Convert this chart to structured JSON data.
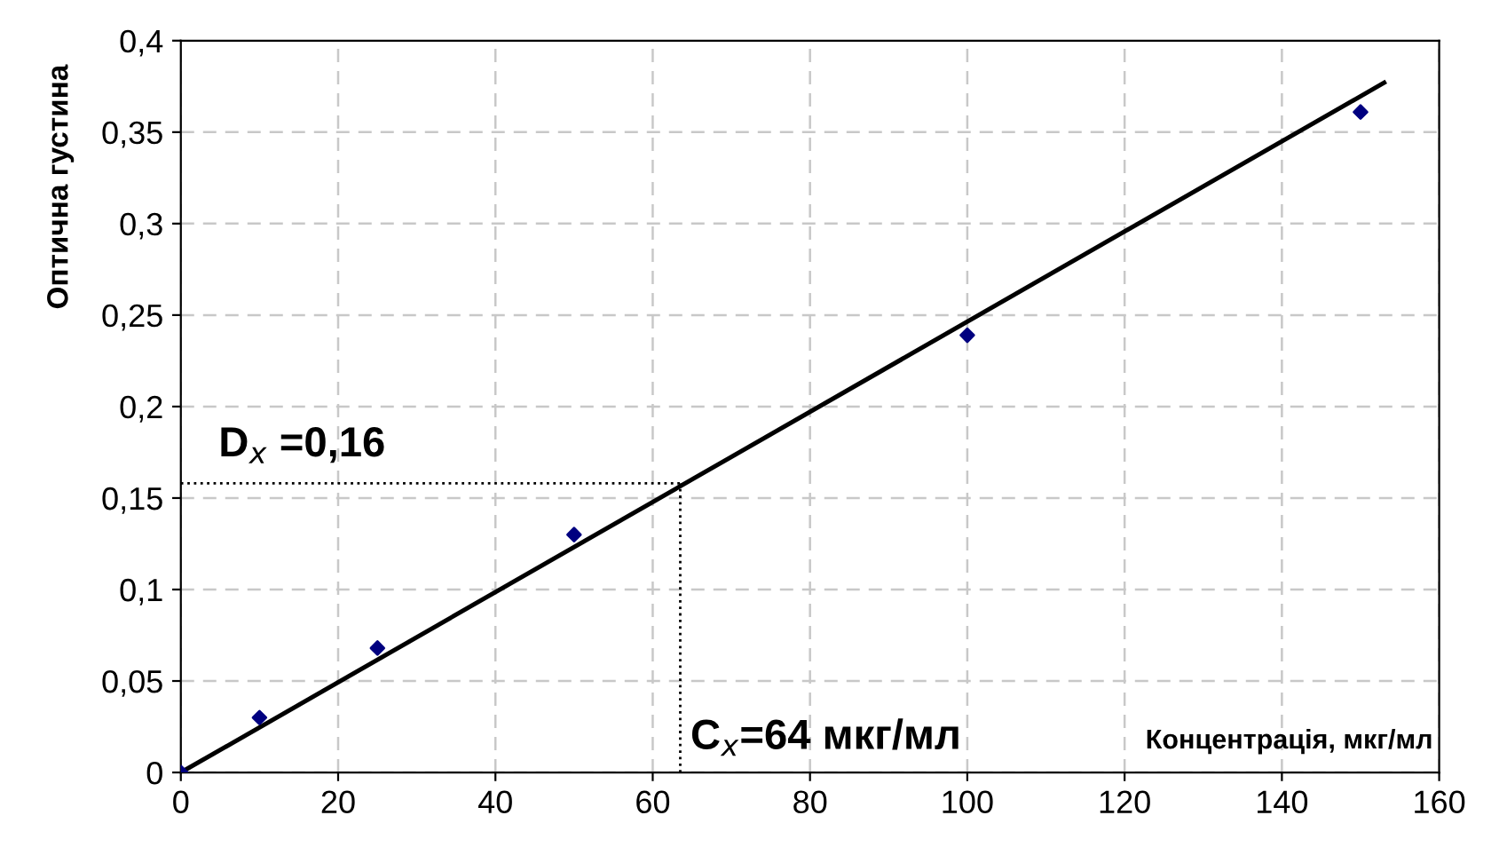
{
  "chart_data": {
    "type": "scatter",
    "xlabel": "Концентрація, мкг/мл",
    "ylabel": "Оптична густина",
    "annotations": [
      "D$_{x}$ =0,16",
      "C$_{x}$=64 мкг/мл"
    ],
    "series": [
      {
        "color": "#000080",
        "marker": "diamond",
        "x": [
          0,
          10,
          25,
          50,
          100,
          150
        ],
        "values": [
          0,
          0.03,
          0.068,
          0.13,
          0.239,
          0.361
        ]
      },
      {
        "type": "line",
        "color": "#000000",
        "line_style": "solid",
        "x": [
          0,
          153
        ],
        "values": [
          0,
          0.377
        ]
      },
      {
        "type": "line",
        "color": "#000000",
        "line_style": "dotted",
        "x": [
          0,
          63.5
        ],
        "values": [
          0.158,
          0.158
        ]
      },
      {
        "type": "line",
        "color": "#000000",
        "line_style": "dotted",
        "x": [
          63.5,
          63.5
        ],
        "values": [
          0,
          0.158
        ]
      }
    ],
    "xlim": [
      0,
      160
    ],
    "xticks": [
      0,
      20,
      40,
      60,
      80,
      100,
      120,
      140,
      160
    ],
    "ylim": [
      0,
      0.4
    ],
    "yticks": [
      0,
      {
        "value": 0.05,
        "label": "0,05"
      },
      {
        "value": 0.1,
        "label": "0,1"
      },
      {
        "value": 0.15,
        "label": "0,15"
      },
      {
        "value": 0.2,
        "label": "0,2"
      },
      {
        "value": 0.25,
        "label": "0,25"
      },
      {
        "value": 0.3,
        "label": "0,3"
      },
      {
        "value": 0.35,
        "label": "0,35"
      },
      {
        "value": 0.4,
        "label": "0,4"
      }
    ],
    "grid": true,
    "legend": false
  }
}
